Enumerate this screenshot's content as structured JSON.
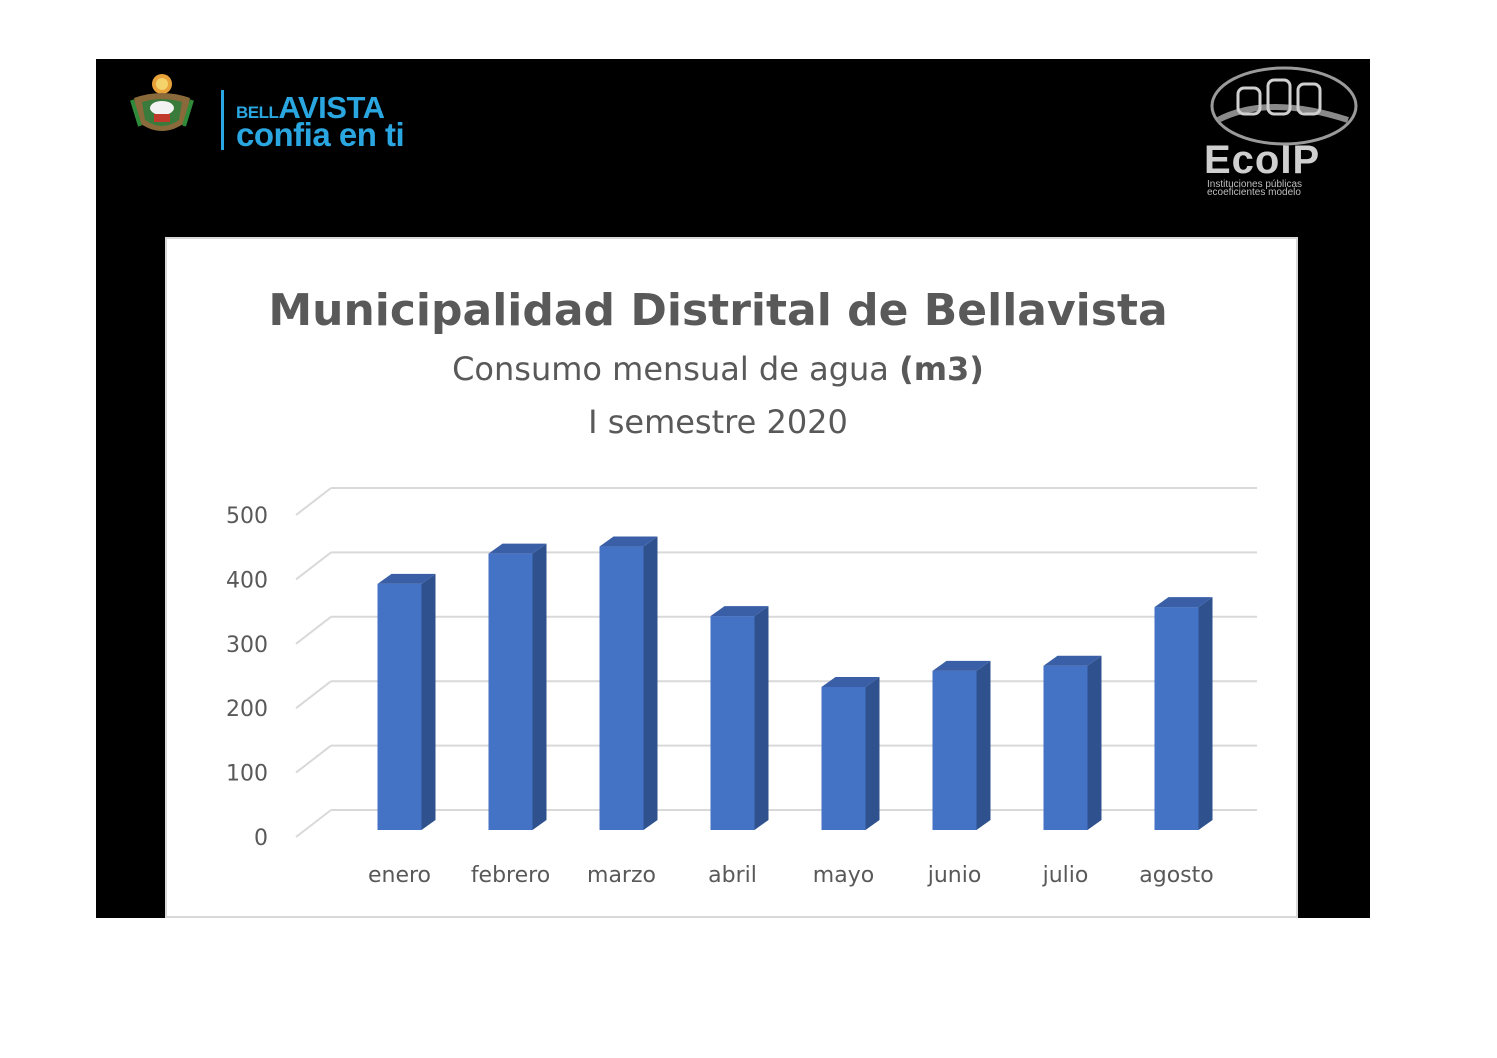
{
  "header": {
    "brand_small": "BELL",
    "brand_large": "AVISTA",
    "slogan": "confia en ti",
    "eco_logo_text": "EcoIP",
    "eco_tagline_1": "Instituciones públicas",
    "eco_tagline_2": "ecoeficientes modelo",
    "crest_icon": "municipal-crest-icon",
    "eco_icon": "ecoip-buildings-icon"
  },
  "chart_data": {
    "type": "bar",
    "title": "Municipalidad Distrital de Bellavista",
    "subtitle_main": "Consumo mensual de agua ",
    "subtitle_unit": "(m3)",
    "subtitle_line2": "I semestre 2020",
    "categories": [
      "enero",
      "febrero",
      "marzo",
      "abril",
      "mayo",
      "junio",
      "julio",
      "agosto"
    ],
    "values": [
      393,
      440,
      451,
      343,
      233,
      258,
      266,
      357
    ],
    "ylim": [
      0,
      500
    ],
    "yticks": [
      "0",
      "100",
      "200",
      "300",
      "400",
      "500"
    ],
    "grid": true,
    "bar_color": "#4472c4",
    "bar_side_color": "#2f528f",
    "bar_top_color": "#3a5fa6"
  }
}
